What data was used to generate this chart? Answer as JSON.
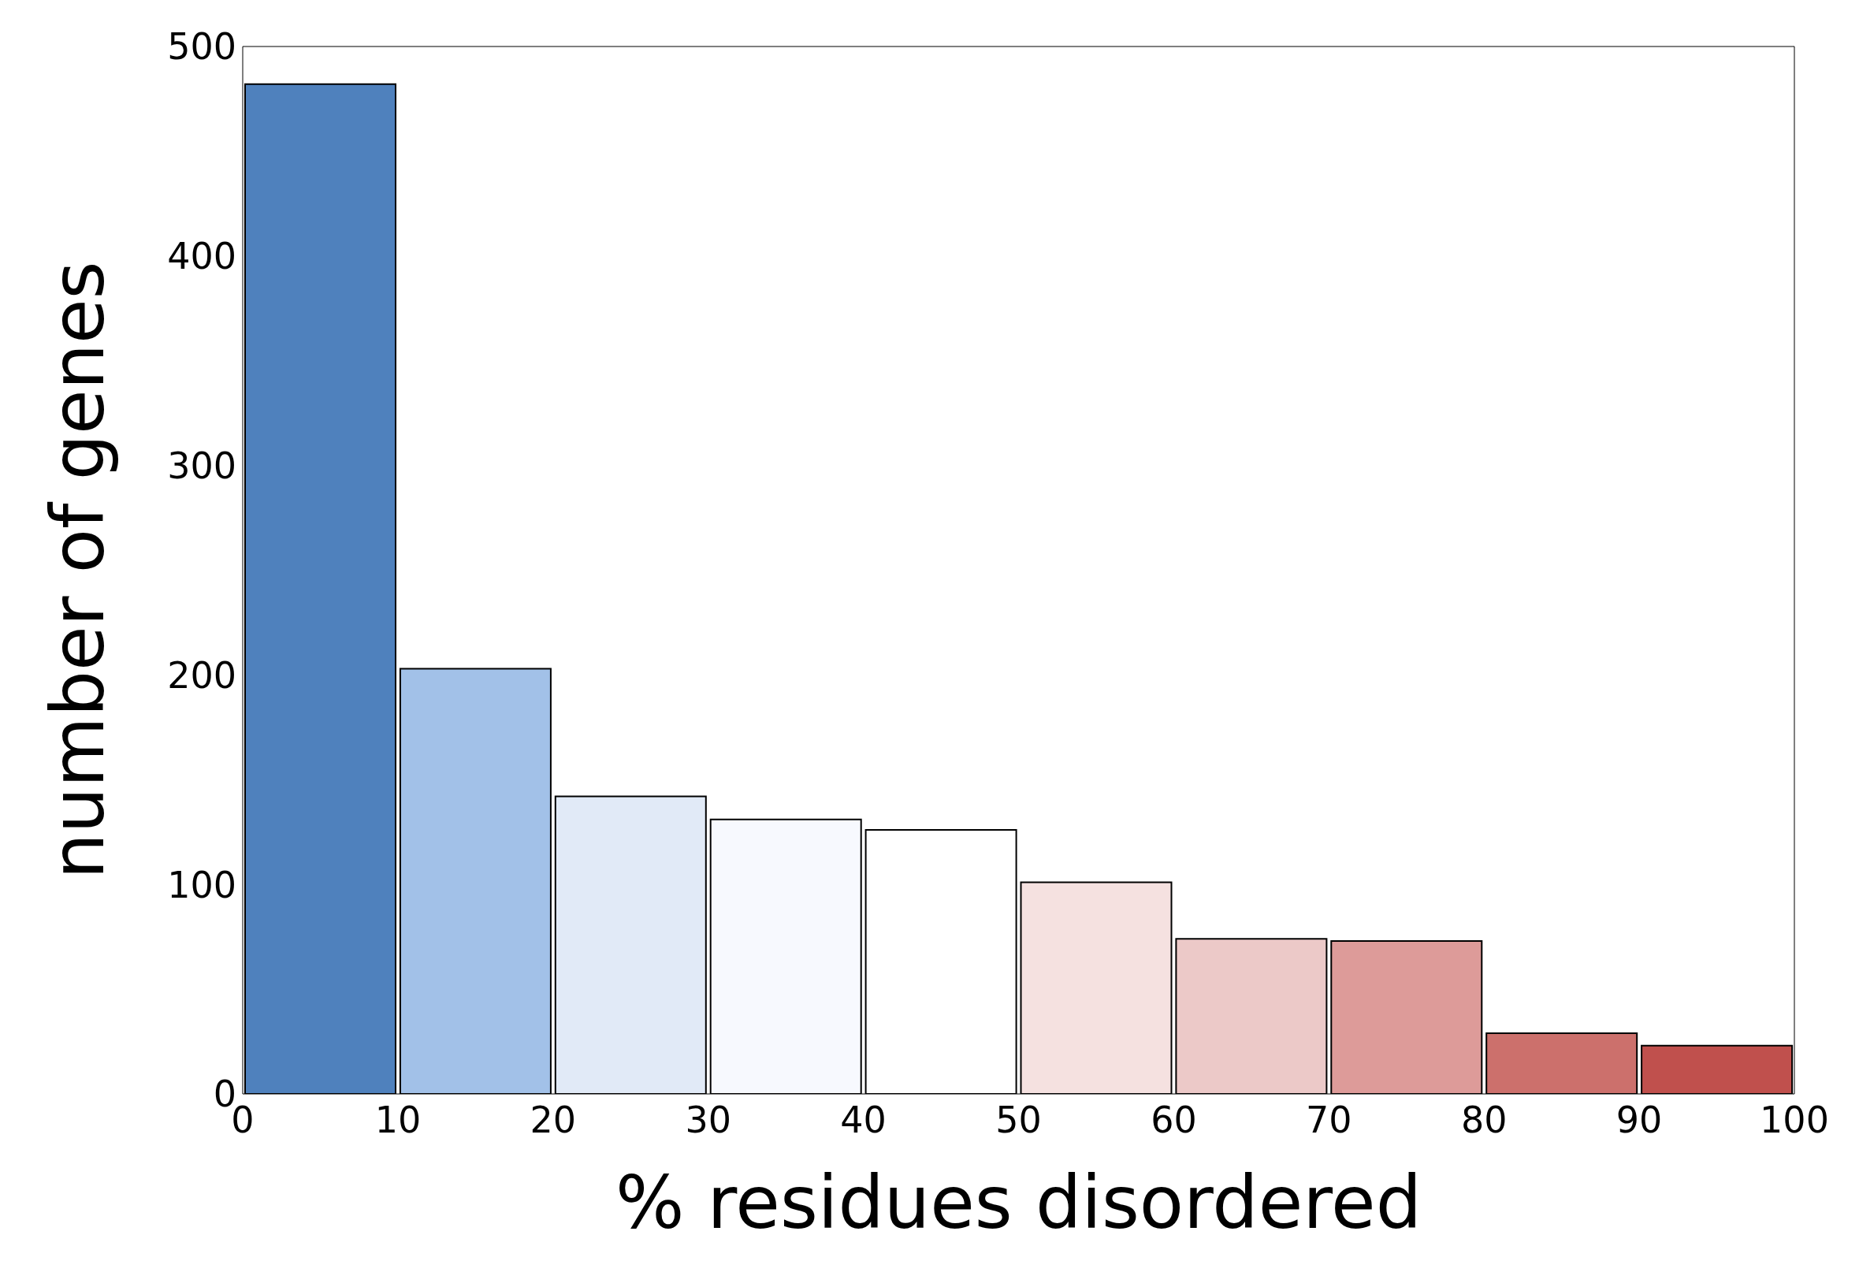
{
  "chart_data": {
    "type": "histogram",
    "xlabel": "% residues disordered",
    "ylabel": "number of genes",
    "bins": [
      0,
      10,
      20,
      30,
      40,
      50,
      60,
      70,
      80,
      90,
      100
    ],
    "values": [
      482,
      203,
      142,
      131,
      126,
      101,
      74,
      73,
      29,
      23
    ],
    "colors": [
      "#4f81bd",
      "#a2c1e8",
      "#e1eaf7",
      "#f7f9fe",
      "#ffffff",
      "#f5e1e0",
      "#ecc9c8",
      "#dd9b99",
      "#cc706c",
      "#c0504d"
    ],
    "xlim": [
      0,
      100
    ],
    "xticks": [
      0,
      10,
      20,
      30,
      40,
      50,
      60,
      70,
      80,
      90,
      100
    ],
    "ylim": [
      0,
      500
    ],
    "yticks": [
      0,
      100,
      200,
      300,
      400,
      500
    ],
    "grid": false
  }
}
